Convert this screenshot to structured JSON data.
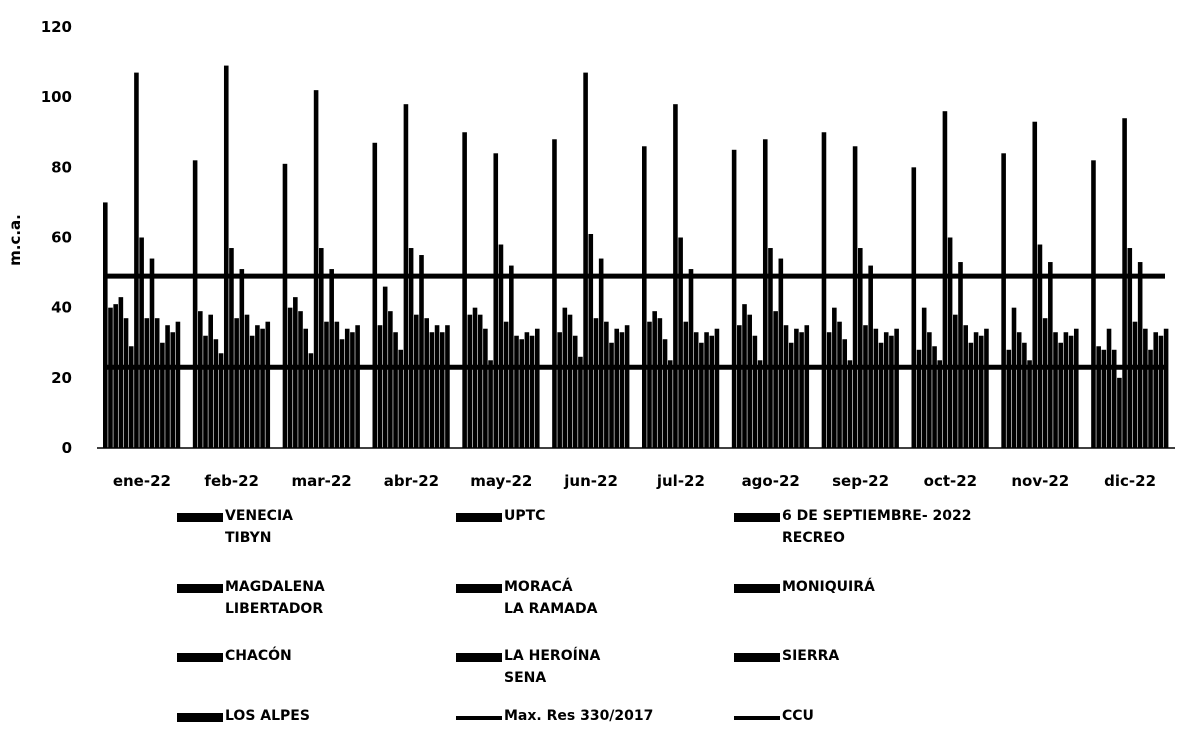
{
  "chart_data": {
    "type": "bar",
    "title": "",
    "xlabel": "",
    "ylabel": "m.c.a.",
    "ylim": [
      0,
      120
    ],
    "yticks": [
      0,
      20,
      40,
      60,
      80,
      100,
      120
    ],
    "grid": false,
    "legend_position": "bottom",
    "categories": [
      "ene-22",
      "feb-22",
      "mar-22",
      "abr-22",
      "may-22",
      "jun-22",
      "jul-22",
      "ago-22",
      "sep-22",
      "oct-22",
      "nov-22",
      "dic-22"
    ],
    "series": [
      {
        "name": "VENECIA",
        "values": [
          70,
          82,
          81,
          87,
          90,
          88,
          86,
          85,
          90,
          80,
          84,
          82
        ]
      },
      {
        "name": "TIBYN",
        "values": [
          40,
          39,
          40,
          35,
          38,
          33,
          36,
          35,
          33,
          28,
          28,
          29
        ]
      },
      {
        "name": "UPTC",
        "values": [
          41,
          32,
          43,
          46,
          40,
          40,
          39,
          41,
          40,
          40,
          40,
          28
        ]
      },
      {
        "name": "6 DE SEPTIEMBRE- 2022",
        "values": [
          43,
          38,
          39,
          39,
          38,
          38,
          37,
          38,
          36,
          33,
          33,
          34
        ]
      },
      {
        "name": "RECREO",
        "values": [
          37,
          31,
          34,
          33,
          34,
          32,
          31,
          32,
          31,
          29,
          30,
          28
        ]
      },
      {
        "name": "MAGDALENA",
        "values": [
          29,
          27,
          27,
          28,
          25,
          26,
          25,
          25,
          25,
          25,
          25,
          20
        ]
      },
      {
        "name": "LIBERTADOR",
        "values": [
          107,
          109,
          102,
          98,
          84,
          107,
          98,
          88,
          86,
          96,
          93,
          94
        ]
      },
      {
        "name": "MORACÁ",
        "values": [
          60,
          57,
          57,
          57,
          58,
          61,
          60,
          57,
          57,
          60,
          58,
          57
        ]
      },
      {
        "name": "LA RAMADA",
        "values": [
          37,
          37,
          36,
          38,
          36,
          37,
          36,
          39,
          35,
          38,
          37,
          36
        ]
      },
      {
        "name": "MONIQUIRÁ",
        "values": [
          54,
          51,
          51,
          55,
          52,
          54,
          51,
          54,
          52,
          53,
          53,
          53
        ]
      },
      {
        "name": "CHACÓN",
        "values": [
          37,
          38,
          36,
          37,
          32,
          36,
          33,
          35,
          34,
          35,
          33,
          34
        ]
      },
      {
        "name": "LA HEROÍNA",
        "values": [
          30,
          32,
          31,
          33,
          31,
          30,
          30,
          30,
          30,
          30,
          30,
          28
        ]
      },
      {
        "name": "SENA",
        "values": [
          35,
          35,
          34,
          35,
          33,
          34,
          33,
          34,
          33,
          33,
          33,
          33
        ]
      },
      {
        "name": "SIERRA",
        "values": [
          33,
          34,
          33,
          33,
          32,
          33,
          32,
          33,
          32,
          32,
          32,
          32
        ]
      },
      {
        "name": "LOS ALPES",
        "values": [
          36,
          36,
          35,
          35,
          34,
          35,
          34,
          35,
          34,
          34,
          34,
          34
        ]
      }
    ],
    "reference_lines": [
      {
        "name": "Max. Res 330/2017",
        "value": 49
      },
      {
        "name": "CCU",
        "value": 23
      }
    ],
    "legend": [
      {
        "lines": [
          "VENECIA",
          "TIBYN"
        ],
        "kind": "bar"
      },
      {
        "lines": [
          "UPTC"
        ],
        "kind": "bar"
      },
      {
        "lines": [
          "6 DE SEPTIEMBRE- 2022",
          "RECREO"
        ],
        "kind": "bar"
      },
      {
        "lines": [
          "MAGDALENA",
          "LIBERTADOR"
        ],
        "kind": "bar"
      },
      {
        "lines": [
          "MORACÁ",
          "LA RAMADA"
        ],
        "kind": "bar"
      },
      {
        "lines": [
          "MONIQUIRÁ"
        ],
        "kind": "bar"
      },
      {
        "lines": [
          "CHACÓN"
        ],
        "kind": "bar"
      },
      {
        "lines": [
          "LA HEROÍNA",
          "SENA"
        ],
        "kind": "bar"
      },
      {
        "lines": [
          "SIERRA"
        ],
        "kind": "bar"
      },
      {
        "lines": [
          "LOS ALPES"
        ],
        "kind": "bar"
      },
      {
        "lines": [
          "Max. Res 330/2017"
        ],
        "kind": "line"
      },
      {
        "lines": [
          "CCU"
        ],
        "kind": "line"
      }
    ]
  }
}
